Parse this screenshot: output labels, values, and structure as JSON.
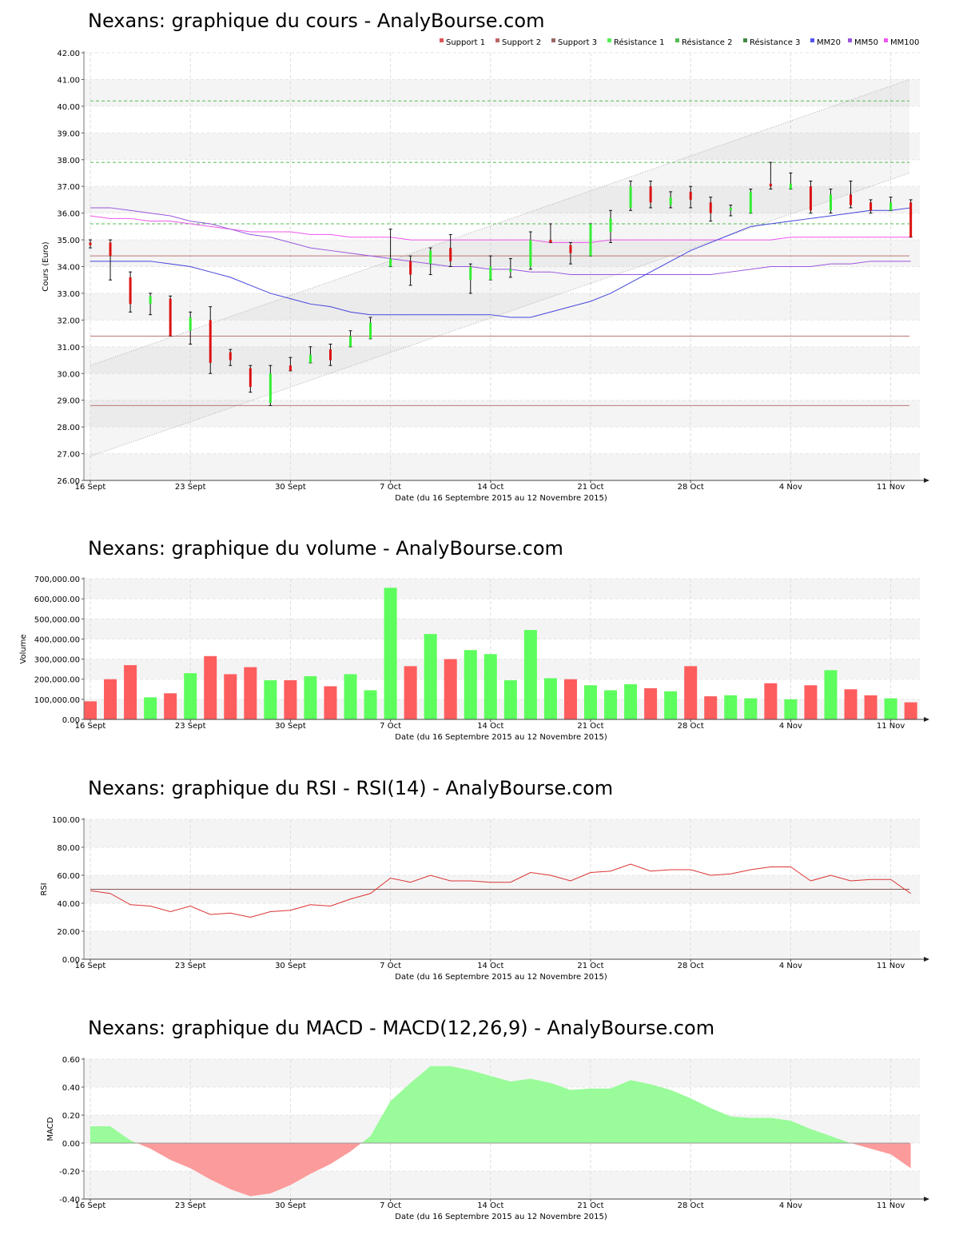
{
  "colors": {
    "up": "#33ee33",
    "down": "#dd1111",
    "vol_up": "#5dfd5d",
    "vol_down": "#fe5d5d",
    "mm20": "#4444dd",
    "mm50": "#9955dd",
    "mm100": "#ee55ee",
    "support": "#bb7777",
    "resistance": "#55bb55",
    "macd_pos": "#99fb99",
    "macd_neg": "#fc9b9b",
    "rsi_line": "#dd3333"
  },
  "x_axis": {
    "title": "Date (du 16 Septembre 2015 au 12 Novembre 2015)",
    "ticks": [
      {
        "index": 0,
        "label": "16 Sept"
      },
      {
        "index": 5,
        "label": "23 Sept"
      },
      {
        "index": 10,
        "label": "30 Sept"
      },
      {
        "index": 15,
        "label": "7 Oct"
      },
      {
        "index": 20,
        "label": "14 Oct"
      },
      {
        "index": 25,
        "label": "21 Oct"
      },
      {
        "index": 30,
        "label": "28 Oct"
      },
      {
        "index": 35,
        "label": "4 Nov"
      },
      {
        "index": 40,
        "label": "11 Nov"
      }
    ]
  },
  "chart_data": [
    {
      "type": "candlestick",
      "title": "Nexans: graphique du cours - AnalyBourse.com",
      "ylabel": "Cours (Euro)",
      "ylim": [
        26,
        42
      ],
      "yticks": [
        "26.00",
        "27.00",
        "28.00",
        "29.00",
        "30.00",
        "31.00",
        "32.00",
        "33.00",
        "34.00",
        "35.00",
        "36.00",
        "37.00",
        "38.00",
        "39.00",
        "40.00",
        "41.00",
        "42.00"
      ],
      "legend": [
        "Support 1",
        "Support 2",
        "Support 3",
        "Résistance 1",
        "Résistance 2",
        "Résistance 3",
        "MM20",
        "MM50",
        "MM100"
      ],
      "legend_placement": "top-right",
      "grid": true,
      "candles": [
        {
          "o": 34.9,
          "h": 35.0,
          "l": 34.7,
          "c": 34.8
        },
        {
          "o": 34.9,
          "h": 35.0,
          "l": 33.5,
          "c": 34.4
        },
        {
          "o": 33.6,
          "h": 33.8,
          "l": 32.3,
          "c": 32.6
        },
        {
          "o": 32.6,
          "h": 33.0,
          "l": 32.2,
          "c": 32.9
        },
        {
          "o": 32.8,
          "h": 32.9,
          "l": 31.4,
          "c": 31.4
        },
        {
          "o": 31.6,
          "h": 32.3,
          "l": 31.1,
          "c": 32.1
        },
        {
          "o": 32.0,
          "h": 32.5,
          "l": 30.0,
          "c": 30.4
        },
        {
          "o": 30.8,
          "h": 30.9,
          "l": 30.3,
          "c": 30.5
        },
        {
          "o": 30.2,
          "h": 30.3,
          "l": 29.3,
          "c": 29.5
        },
        {
          "o": 28.9,
          "h": 30.3,
          "l": 28.8,
          "c": 30.0
        },
        {
          "o": 30.3,
          "h": 30.6,
          "l": 30.1,
          "c": 30.1
        },
        {
          "o": 30.4,
          "h": 31.0,
          "l": 30.4,
          "c": 30.7
        },
        {
          "o": 30.9,
          "h": 31.1,
          "l": 30.3,
          "c": 30.5
        },
        {
          "o": 31.0,
          "h": 31.6,
          "l": 31.0,
          "c": 31.4
        },
        {
          "o": 31.3,
          "h": 32.1,
          "l": 31.3,
          "c": 31.9
        },
        {
          "o": 34.0,
          "h": 35.4,
          "l": 34.0,
          "c": 34.3
        },
        {
          "o": 34.2,
          "h": 34.4,
          "l": 33.3,
          "c": 33.7
        },
        {
          "o": 34.1,
          "h": 34.7,
          "l": 33.7,
          "c": 34.6
        },
        {
          "o": 34.7,
          "h": 35.2,
          "l": 34.0,
          "c": 34.2
        },
        {
          "o": 33.5,
          "h": 34.1,
          "l": 33.0,
          "c": 34.0
        },
        {
          "o": 33.5,
          "h": 34.4,
          "l": 33.5,
          "c": 34.0
        },
        {
          "o": 33.8,
          "h": 34.3,
          "l": 33.6,
          "c": 33.9
        },
        {
          "o": 34.0,
          "h": 35.3,
          "l": 33.9,
          "c": 35.0
        },
        {
          "o": 35.0,
          "h": 35.6,
          "l": 34.9,
          "c": 34.9
        },
        {
          "o": 34.8,
          "h": 34.9,
          "l": 34.1,
          "c": 34.5
        },
        {
          "o": 34.4,
          "h": 35.6,
          "l": 34.4,
          "c": 35.6
        },
        {
          "o": 35.3,
          "h": 36.1,
          "l": 34.9,
          "c": 35.8
        },
        {
          "o": 36.2,
          "h": 37.2,
          "l": 36.1,
          "c": 37.0
        },
        {
          "o": 37.0,
          "h": 37.2,
          "l": 36.2,
          "c": 36.4
        },
        {
          "o": 36.3,
          "h": 36.8,
          "l": 36.2,
          "c": 36.6
        },
        {
          "o": 36.8,
          "h": 37.0,
          "l": 36.2,
          "c": 36.5
        },
        {
          "o": 36.4,
          "h": 36.6,
          "l": 35.7,
          "c": 36.0
        },
        {
          "o": 36.1,
          "h": 36.3,
          "l": 35.9,
          "c": 36.2
        },
        {
          "o": 36.0,
          "h": 36.9,
          "l": 36.0,
          "c": 36.8
        },
        {
          "o": 37.1,
          "h": 37.9,
          "l": 36.9,
          "c": 37.0
        },
        {
          "o": 36.9,
          "h": 37.5,
          "l": 36.9,
          "c": 37.1
        },
        {
          "o": 37.0,
          "h": 37.2,
          "l": 36.0,
          "c": 36.1
        },
        {
          "o": 36.1,
          "h": 36.9,
          "l": 36.0,
          "c": 36.7
        },
        {
          "o": 36.7,
          "h": 37.2,
          "l": 36.2,
          "c": 36.3
        },
        {
          "o": 36.4,
          "h": 36.5,
          "l": 36.0,
          "c": 36.1
        },
        {
          "o": 36.1,
          "h": 36.6,
          "l": 36.1,
          "c": 36.4
        },
        {
          "o": 36.4,
          "h": 36.5,
          "l": 35.1,
          "c": 35.1
        }
      ],
      "levels": {
        "support_1": 34.4,
        "support_2": 31.4,
        "support_3": 28.8,
        "resistance_1": 35.6,
        "resistance_2": 37.9,
        "resistance_3": 40.2
      },
      "channel": {
        "lower_start": 26.9,
        "lower_end": 37.5,
        "upper_start": 30.3,
        "upper_end": 41.0
      },
      "mm20": [
        34.2,
        34.2,
        34.2,
        34.2,
        34.1,
        34.0,
        33.8,
        33.6,
        33.3,
        33.0,
        32.8,
        32.6,
        32.5,
        32.3,
        32.2,
        32.2,
        32.2,
        32.2,
        32.2,
        32.2,
        32.2,
        32.1,
        32.1,
        32.3,
        32.5,
        32.7,
        33.0,
        33.4,
        33.8,
        34.2,
        34.6,
        34.9,
        35.2,
        35.5,
        35.6,
        35.7,
        35.8,
        35.9,
        36.0,
        36.1,
        36.1,
        36.2
      ],
      "mm50": [
        36.2,
        36.2,
        36.1,
        36.0,
        35.9,
        35.7,
        35.6,
        35.4,
        35.2,
        35.1,
        34.9,
        34.7,
        34.6,
        34.5,
        34.4,
        34.3,
        34.2,
        34.1,
        34.0,
        34.0,
        33.9,
        33.9,
        33.8,
        33.8,
        33.7,
        33.7,
        33.7,
        33.7,
        33.7,
        33.7,
        33.7,
        33.7,
        33.8,
        33.9,
        34.0,
        34.0,
        34.0,
        34.1,
        34.1,
        34.2,
        34.2,
        34.2
      ],
      "mm100": [
        35.9,
        35.8,
        35.8,
        35.7,
        35.7,
        35.6,
        35.5,
        35.4,
        35.3,
        35.3,
        35.3,
        35.2,
        35.2,
        35.1,
        35.1,
        35.1,
        35.0,
        35.0,
        35.0,
        35.0,
        35.0,
        35.0,
        35.0,
        34.9,
        34.9,
        34.9,
        35.0,
        35.0,
        35.0,
        35.0,
        35.0,
        35.0,
        35.0,
        35.0,
        35.0,
        35.1,
        35.1,
        35.1,
        35.1,
        35.1,
        35.1,
        35.1
      ]
    },
    {
      "type": "bar",
      "title": "Nexans: graphique du volume - AnalyBourse.com",
      "ylabel": "Volume",
      "ylim": [
        0,
        700000
      ],
      "yticks": [
        "0.00",
        "100,000.00",
        "200,000.00",
        "300,000.00",
        "400,000.00",
        "500,000.00",
        "600,000.00",
        "700,000.00"
      ],
      "values": [
        90000,
        200000,
        270000,
        110000,
        130000,
        230000,
        315000,
        225000,
        260000,
        195000,
        195000,
        215000,
        165000,
        225000,
        145000,
        655000,
        265000,
        425000,
        300000,
        345000,
        325000,
        195000,
        445000,
        205000,
        200000,
        170000,
        145000,
        175000,
        155000,
        140000,
        265000,
        115000,
        120000,
        105000,
        180000,
        100000,
        170000,
        245000,
        150000,
        120000,
        105000,
        85000
      ],
      "up": [
        false,
        false,
        false,
        true,
        false,
        true,
        false,
        false,
        false,
        true,
        false,
        true,
        false,
        true,
        true,
        true,
        false,
        true,
        false,
        true,
        true,
        true,
        true,
        true,
        false,
        true,
        true,
        true,
        false,
        true,
        false,
        false,
        true,
        true,
        false,
        true,
        false,
        true,
        false,
        false,
        true,
        false
      ]
    },
    {
      "type": "line",
      "title": "Nexans: graphique du RSI - RSI(14) - AnalyBourse.com",
      "ylabel": "RSI",
      "ylim": [
        0,
        100
      ],
      "yticks": [
        "0.00",
        "20.00",
        "40.00",
        "60.00",
        "80.00",
        "100.00"
      ],
      "reference": 50,
      "values": [
        49,
        47,
        39,
        38,
        34,
        38,
        32,
        33,
        30,
        34,
        35,
        39,
        38,
        43,
        47,
        58,
        55,
        60,
        56,
        56,
        55,
        55,
        62,
        60,
        56,
        62,
        63,
        68,
        63,
        64,
        64,
        60,
        61,
        64,
        66,
        66,
        56,
        60,
        56,
        57,
        57,
        47
      ]
    },
    {
      "type": "area",
      "title": "Nexans: graphique du MACD - MACD(12,26,9) - AnalyBourse.com",
      "ylabel": "MACD",
      "ylim": [
        -0.4,
        0.6
      ],
      "yticks": [
        "-0.40",
        "-0.20",
        "0.00",
        "0.20",
        "0.40",
        "0.60"
      ],
      "values": [
        0.12,
        0.12,
        0.02,
        -0.04,
        -0.12,
        -0.18,
        -0.26,
        -0.33,
        -0.38,
        -0.36,
        -0.3,
        -0.22,
        -0.15,
        -0.06,
        0.05,
        0.3,
        0.43,
        0.55,
        0.55,
        0.52,
        0.48,
        0.44,
        0.46,
        0.43,
        0.38,
        0.39,
        0.39,
        0.45,
        0.42,
        0.38,
        0.32,
        0.25,
        0.19,
        0.18,
        0.18,
        0.16,
        0.1,
        0.05,
        0.0,
        -0.04,
        -0.08,
        -0.18
      ]
    }
  ]
}
